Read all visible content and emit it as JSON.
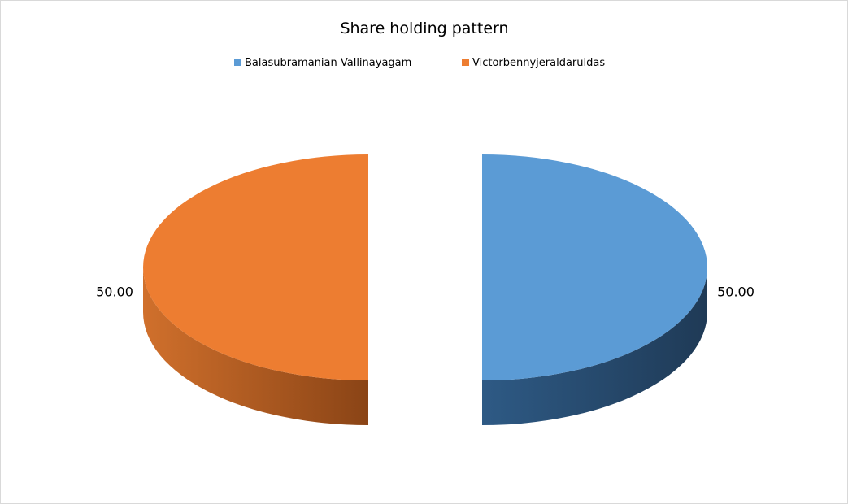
{
  "chart_data": {
    "type": "pie",
    "style": "3d-exploded",
    "title": "Share holding pattern",
    "legend_position": "top",
    "categories": [
      "Balasubramanian Vallinayagam",
      "Victorbennyjeraldaruldas"
    ],
    "values": [
      50.0,
      50.0
    ],
    "data_labels": [
      "50.00",
      "50.00"
    ],
    "colors": [
      "#5B9BD5",
      "#ED7D31"
    ],
    "side_colors": [
      [
        "#2E5A85",
        "#1F3A56"
      ],
      [
        "#D0702C",
        "#8A4416"
      ]
    ]
  }
}
